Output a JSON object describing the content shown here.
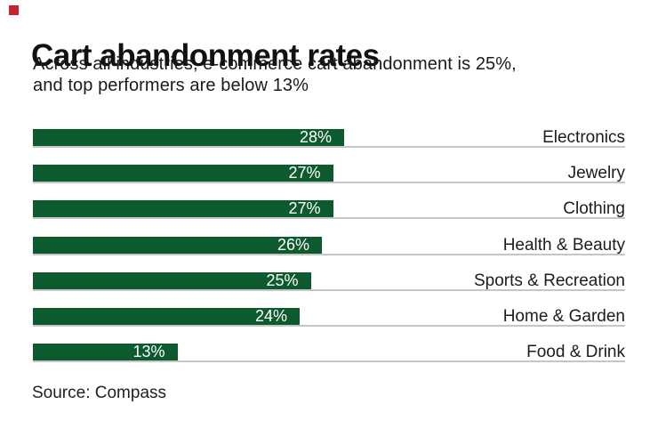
{
  "page": {
    "title": "Cart abandonment rates",
    "subtitle_line1": "Across all industries, e-commerce cart abandonment is 25%,",
    "subtitle_line2": "and top performers are below 13%",
    "source": "Source: Compass"
  },
  "colors": {
    "bar_green": "#0d5a2e",
    "brand_red": "#c7232c",
    "rule_gray": "#c6c6c6",
    "text_black": "#111111",
    "value_label_white": "#ffffff"
  },
  "chart_data": {
    "type": "bar",
    "orientation": "horizontal",
    "title": "Cart abandonment rates",
    "subtitle": "Across all industries, e-commerce cart abandonment is 25%, and top performers are below 13%",
    "categories": [
      "Electronics",
      "Jewelry",
      "Clothing",
      "Health & Beauty",
      "Sports & Recreation",
      "Home & Garden",
      "Food & Drink"
    ],
    "values": [
      28,
      27,
      27,
      26,
      25,
      24,
      13
    ],
    "value_labels": [
      "28%",
      "27%",
      "27%",
      "26%",
      "25%",
      "24%",
      "13%"
    ],
    "xlabel": "",
    "ylabel": "",
    "xlim": [
      0,
      53
    ],
    "axis_visible": false,
    "grid": false,
    "legend": false,
    "value_label_position": "inside-end",
    "category_label_position": "right-aligned-outside",
    "source": "Source: Compass"
  }
}
